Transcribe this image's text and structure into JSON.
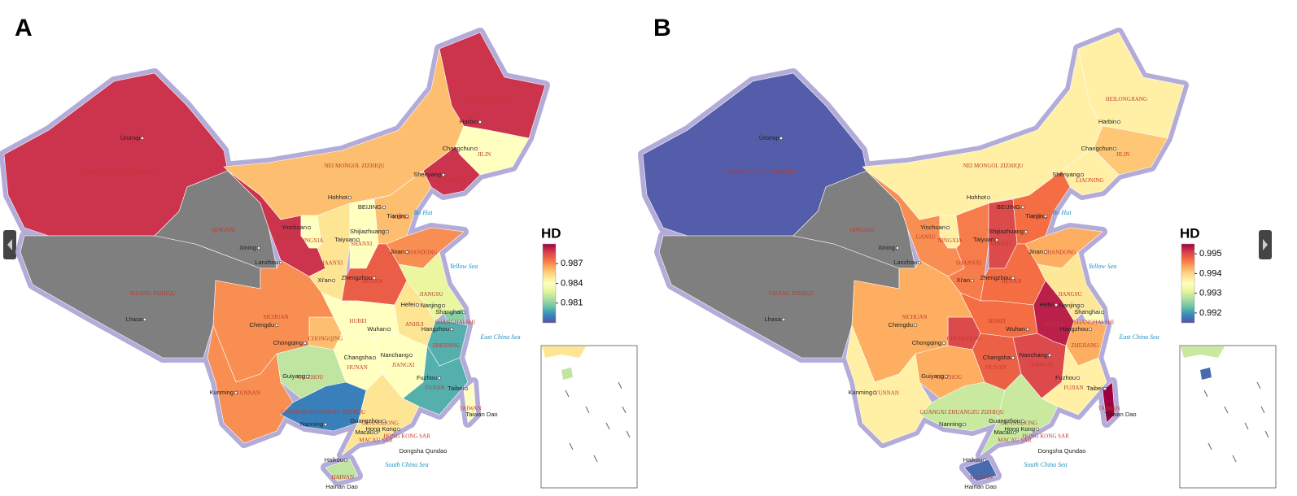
{
  "chart_data": [
    {
      "type": "choropleth",
      "title": "A",
      "colorbar_title": "HD",
      "categories": [
        "XINJIANG UYGUR ZIZHIQU",
        "XIZANG ZIZHIQU",
        "QINGHAI",
        "GANSU",
        "NEI MONGOL ZIZHIQU",
        "HEILONGJIANG",
        "JILIN",
        "LIAONING",
        "NINGXIA",
        "SHAANXI",
        "SHANXI",
        "HEBEI",
        "SHANDONG",
        "HENAN",
        "JIANGSU",
        "ANHUI",
        "SHANGHAI SHI",
        "ZHEJIANG",
        "HUBEI",
        "CHONGQING",
        "SICHUAN",
        "HUNAN",
        "JIANGXI",
        "FUJIAN",
        "GUIZHOU",
        "YUNNAN",
        "GUANGXI ZHUANGZU ZIZHIQU",
        "GUANGDONG",
        "HAINAN",
        "TAIWAN"
      ],
      "values": [
        0.989,
        null,
        null,
        0.989,
        0.986,
        0.989,
        0.984,
        0.989,
        0.984,
        0.985,
        0.984,
        0.986,
        0.987,
        0.988,
        0.983,
        0.985,
        0.981,
        0.98,
        0.984,
        0.986,
        0.987,
        0.984,
        0.984,
        0.98,
        0.982,
        0.987,
        0.979,
        0.985,
        0.982,
        0.984
      ],
      "zlim": [
        0.978,
        0.99
      ],
      "zticks": [
        0.981,
        0.984,
        0.987
      ]
    },
    {
      "type": "choropleth",
      "title": "B",
      "colorbar_title": "HD",
      "categories": [
        "XINJIANG UYGUR ZIZHIQU",
        "XIZANG ZIZHIQU",
        "QINGHAI",
        "GANSU",
        "NEI MONGOL ZIZHIQU",
        "HEILONGJIANG",
        "JILIN",
        "LIAONING",
        "NINGXIA",
        "SHAANXI",
        "SHANXI",
        "HEBEI",
        "SHANDONG",
        "HENAN",
        "JIANGSU",
        "ANHUI",
        "SHANGHAI SHI",
        "ZHEJIANG",
        "HUBEI",
        "CHONGQING",
        "SICHUAN",
        "HUNAN",
        "JIANGXI",
        "FUJIAN",
        "GUIZHOU",
        "YUNNAN",
        "GUANGXI ZHUANGZU ZIZHIQU",
        "GUANGDONG",
        "HAINAN",
        "TAIWAN"
      ],
      "values": [
        0.9916,
        null,
        null,
        0.9945,
        0.9937,
        0.9937,
        0.9941,
        0.9937,
        0.9937,
        0.9946,
        0.995,
        0.9947,
        0.9943,
        0.9947,
        0.9938,
        0.9953,
        0.9935,
        0.9943,
        0.9947,
        0.995,
        0.9943,
        0.9948,
        0.995,
        0.9937,
        0.9943,
        0.9937,
        0.9929,
        0.9929,
        0.9917,
        0.9955
      ],
      "zlim": [
        0.9915,
        0.9955
      ],
      "zticks": [
        0.992,
        0.993,
        0.994,
        0.995
      ]
    }
  ],
  "colormap": [
    "#5e4fa2",
    "#3288bd",
    "#66c2a5",
    "#abdda4",
    "#e6f598",
    "#ffffbf",
    "#fee08b",
    "#fdae61",
    "#f46d43",
    "#d53e4f",
    "#9e0142"
  ],
  "missing_color": "#7f7f7f",
  "map_labels": {
    "cities": [
      "Ürümqi",
      "Lhasa",
      "Xining",
      "Lanzhou",
      "Chengdu",
      "Chongqing",
      "Kunming",
      "Guiyang",
      "Nanning",
      "Changsha",
      "Nanchang",
      "Wuhan",
      "Hefei",
      "Nanjing",
      "Shanghai",
      "Hangzhou",
      "Fuzhou",
      "Taibei",
      "Guangzhou",
      "Hong Kong",
      "Macau",
      "Haikou",
      "Zhengzhou",
      "Xi'an",
      "Taiyuan",
      "Shijiazhuang",
      "Jinan",
      "BEIJING",
      "Tianjin",
      "Hohhot",
      "Yinchuan",
      "Shenyang",
      "Changchun",
      "Harbin"
    ],
    "seas": [
      "Bo Hai",
      "Yellow Sea",
      "East China Sea",
      "South China Sea"
    ],
    "places": [
      "HONG KONG SAR",
      "MACAU SAR",
      "Hainan Dao",
      "Taiwan Dao",
      "Dongsha Qundao"
    ]
  }
}
